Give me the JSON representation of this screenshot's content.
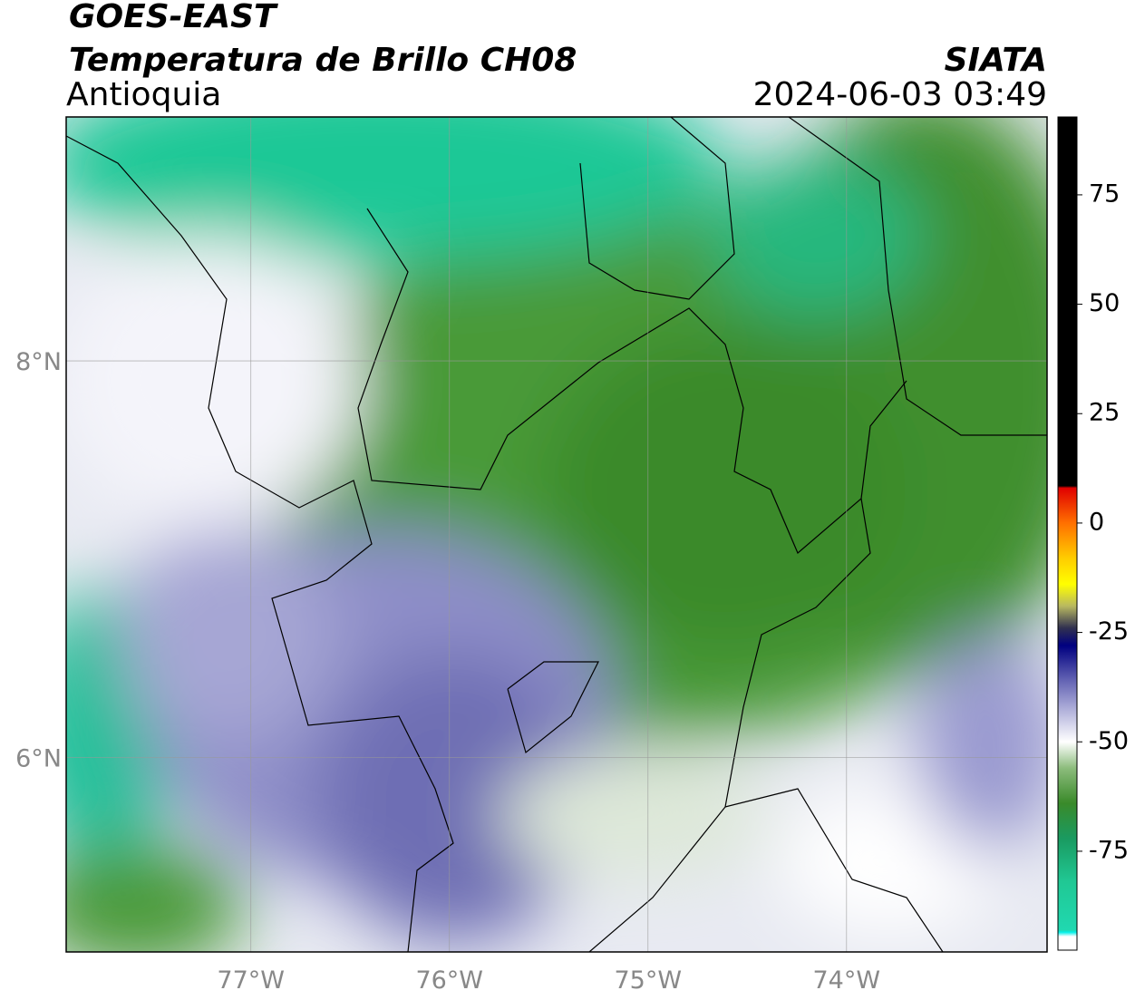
{
  "header": {
    "satellite": "GOES-EAST",
    "product": "Temperatura de Brillo CH08",
    "region": "Antioquia",
    "source": "SIATA",
    "timestamp": "2024-06-03 03:49"
  },
  "map": {
    "xlim": [
      -77.93,
      -72.99
    ],
    "ylim": [
      5.02,
      9.23
    ],
    "xticks": [
      {
        "value": -77,
        "label": "77°W"
      },
      {
        "value": -76,
        "label": "76°W"
      },
      {
        "value": -75,
        "label": "75°W"
      },
      {
        "value": -74,
        "label": "74°W"
      }
    ],
    "yticks": [
      {
        "value": 6,
        "label": "6°N"
      },
      {
        "value": 8,
        "label": "8°N"
      }
    ],
    "grid": true
  },
  "colorbar": {
    "clim": [
      -97.6,
      92.8
    ],
    "ticks": [
      75,
      50,
      25,
      0,
      -25,
      -50,
      -75
    ],
    "colormap": [
      {
        "value": 92.8,
        "color": "#000000"
      },
      {
        "value": 8.5,
        "color": "#000000"
      },
      {
        "value": 8,
        "color": "#e00000"
      },
      {
        "value": 0,
        "color": "#ff7000"
      },
      {
        "value": -8,
        "color": "#ffcc00"
      },
      {
        "value": -14,
        "color": "#ffff00"
      },
      {
        "value": -19,
        "color": "#b8b860"
      },
      {
        "value": -24,
        "color": "#303050"
      },
      {
        "value": -28,
        "color": "#000080"
      },
      {
        "value": -36,
        "color": "#6464b4"
      },
      {
        "value": -43,
        "color": "#b4b4dc"
      },
      {
        "value": -50,
        "color": "#ffffff"
      },
      {
        "value": -56,
        "color": "#8cbc7c"
      },
      {
        "value": -64,
        "color": "#3a8a2a"
      },
      {
        "value": -72,
        "color": "#1a9a60"
      },
      {
        "value": -82,
        "color": "#20c894"
      },
      {
        "value": -93,
        "color": "#20d8b0"
      },
      {
        "value": -93.5,
        "color": "#00f0e8"
      },
      {
        "value": -94.5,
        "color": "#ffffff"
      },
      {
        "value": -97.6,
        "color": "#ffffff"
      }
    ]
  }
}
